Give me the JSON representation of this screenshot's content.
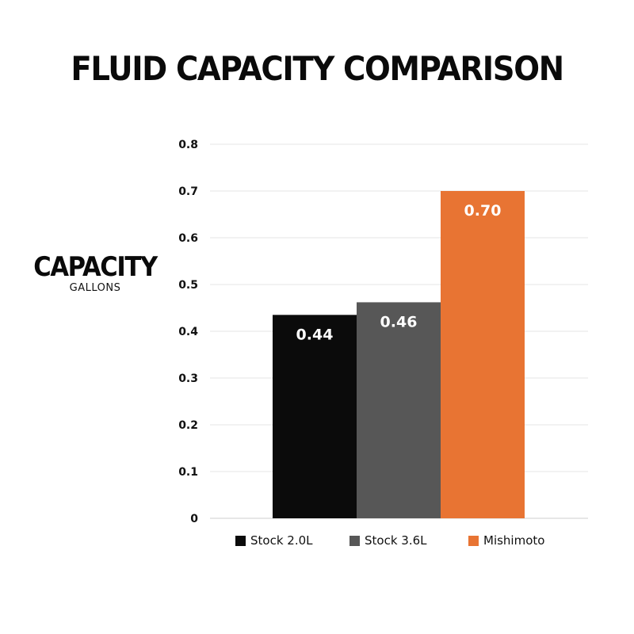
{
  "chart_data": {
    "type": "bar",
    "title": "FLUID CAPACITY COMPARISON",
    "ylabel": "CAPACITY",
    "ylabel_unit": "GALLONS",
    "xlabel": "",
    "ylim": [
      0,
      0.8
    ],
    "yticks": [
      "0",
      "0.1",
      "0.2",
      "0.3",
      "0.4",
      "0.5",
      "0.6",
      "0.7",
      "0.8"
    ],
    "grid": true,
    "legend_position": "bottom",
    "categories": [
      "Stock 2.0L",
      "Stock 3.6L",
      "Mishimoto"
    ],
    "values": [
      0.435,
      0.462,
      0.7
    ],
    "labels": [
      "0.44",
      "0.46",
      "0.70"
    ],
    "colors": [
      "#0b0b0b",
      "#575757",
      "#e87433"
    ]
  }
}
